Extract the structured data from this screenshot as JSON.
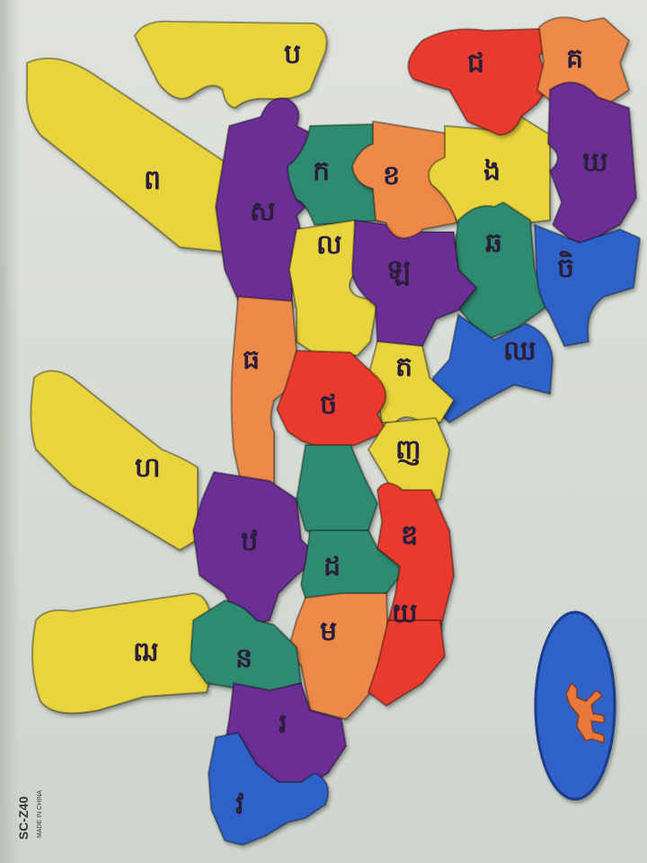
{
  "product": {
    "model_code": "SC-Z40",
    "origin_text": "MADE IN CHINA"
  },
  "colors": {
    "board": "#d9ddd6",
    "yellow": "#e8d43c",
    "purple": "#6a2f94",
    "teal": "#2f8a70",
    "orange": "#ee8a4a",
    "red": "#e83a2e",
    "blue": "#2e62c8"
  },
  "pieces": [
    {
      "id": "hind-leg-upper",
      "color": "yellow",
      "letter": "ប"
    },
    {
      "id": "tail",
      "color": "yellow",
      "letter": "ព"
    },
    {
      "id": "head",
      "color": "red",
      "letter": "ជ"
    },
    {
      "id": "ear",
      "color": "orange",
      "letter": "គ"
    },
    {
      "id": "mane-top",
      "color": "purple",
      "letter": "ឃ"
    },
    {
      "id": "neck-yellow",
      "color": "yellow",
      "letter": "ង"
    },
    {
      "id": "neck-teal",
      "color": "teal",
      "letter": "ឆ"
    },
    {
      "id": "neck-blue",
      "color": "blue",
      "letter": "ចិ"
    },
    {
      "id": "chest-blue",
      "color": "blue",
      "letter": "ឈ"
    },
    {
      "id": "body-orange-top",
      "color": "orange",
      "letter": "ខ"
    },
    {
      "id": "body-teal-top",
      "color": "teal",
      "letter": "ក"
    },
    {
      "id": "body-purple-hip",
      "color": "purple",
      "letter": "ស"
    },
    {
      "id": "body-yellow-mid",
      "color": "yellow",
      "letter": "ល"
    },
    {
      "id": "body-purple-mid",
      "color": "purple",
      "letter": "ឡ"
    },
    {
      "id": "body-orange-mid",
      "color": "orange",
      "letter": "ធ"
    },
    {
      "id": "body-yellow-low",
      "color": "yellow",
      "letter": "ត"
    },
    {
      "id": "body-red-mid",
      "color": "red",
      "letter": "ថ"
    },
    {
      "id": "body-yellow-belly",
      "color": "yellow",
      "letter": "ញ"
    },
    {
      "id": "front-leg-upper",
      "color": "yellow",
      "letter": "ហ"
    },
    {
      "id": "body-purple-low",
      "color": "purple",
      "letter": "ឋ"
    },
    {
      "id": "body-teal-low",
      "color": "teal",
      "letter": "ដ"
    },
    {
      "id": "body-red-low",
      "color": "red",
      "letter": "ឌ"
    },
    {
      "id": "front-leg-lower",
      "color": "yellow",
      "letter": "ឍ"
    },
    {
      "id": "body-teal-neck",
      "color": "teal",
      "letter": "ន"
    },
    {
      "id": "body-orange-low",
      "color": "orange",
      "letter": "ម"
    },
    {
      "id": "body-red-belly",
      "color": "red",
      "letter": "យ"
    },
    {
      "id": "purple-base",
      "color": "purple",
      "letter": "រ"
    },
    {
      "id": "blue-base",
      "color": "blue",
      "letter": "វ"
    }
  ],
  "badge": {
    "color": "blue",
    "icon": "horse-sticker-icon"
  }
}
